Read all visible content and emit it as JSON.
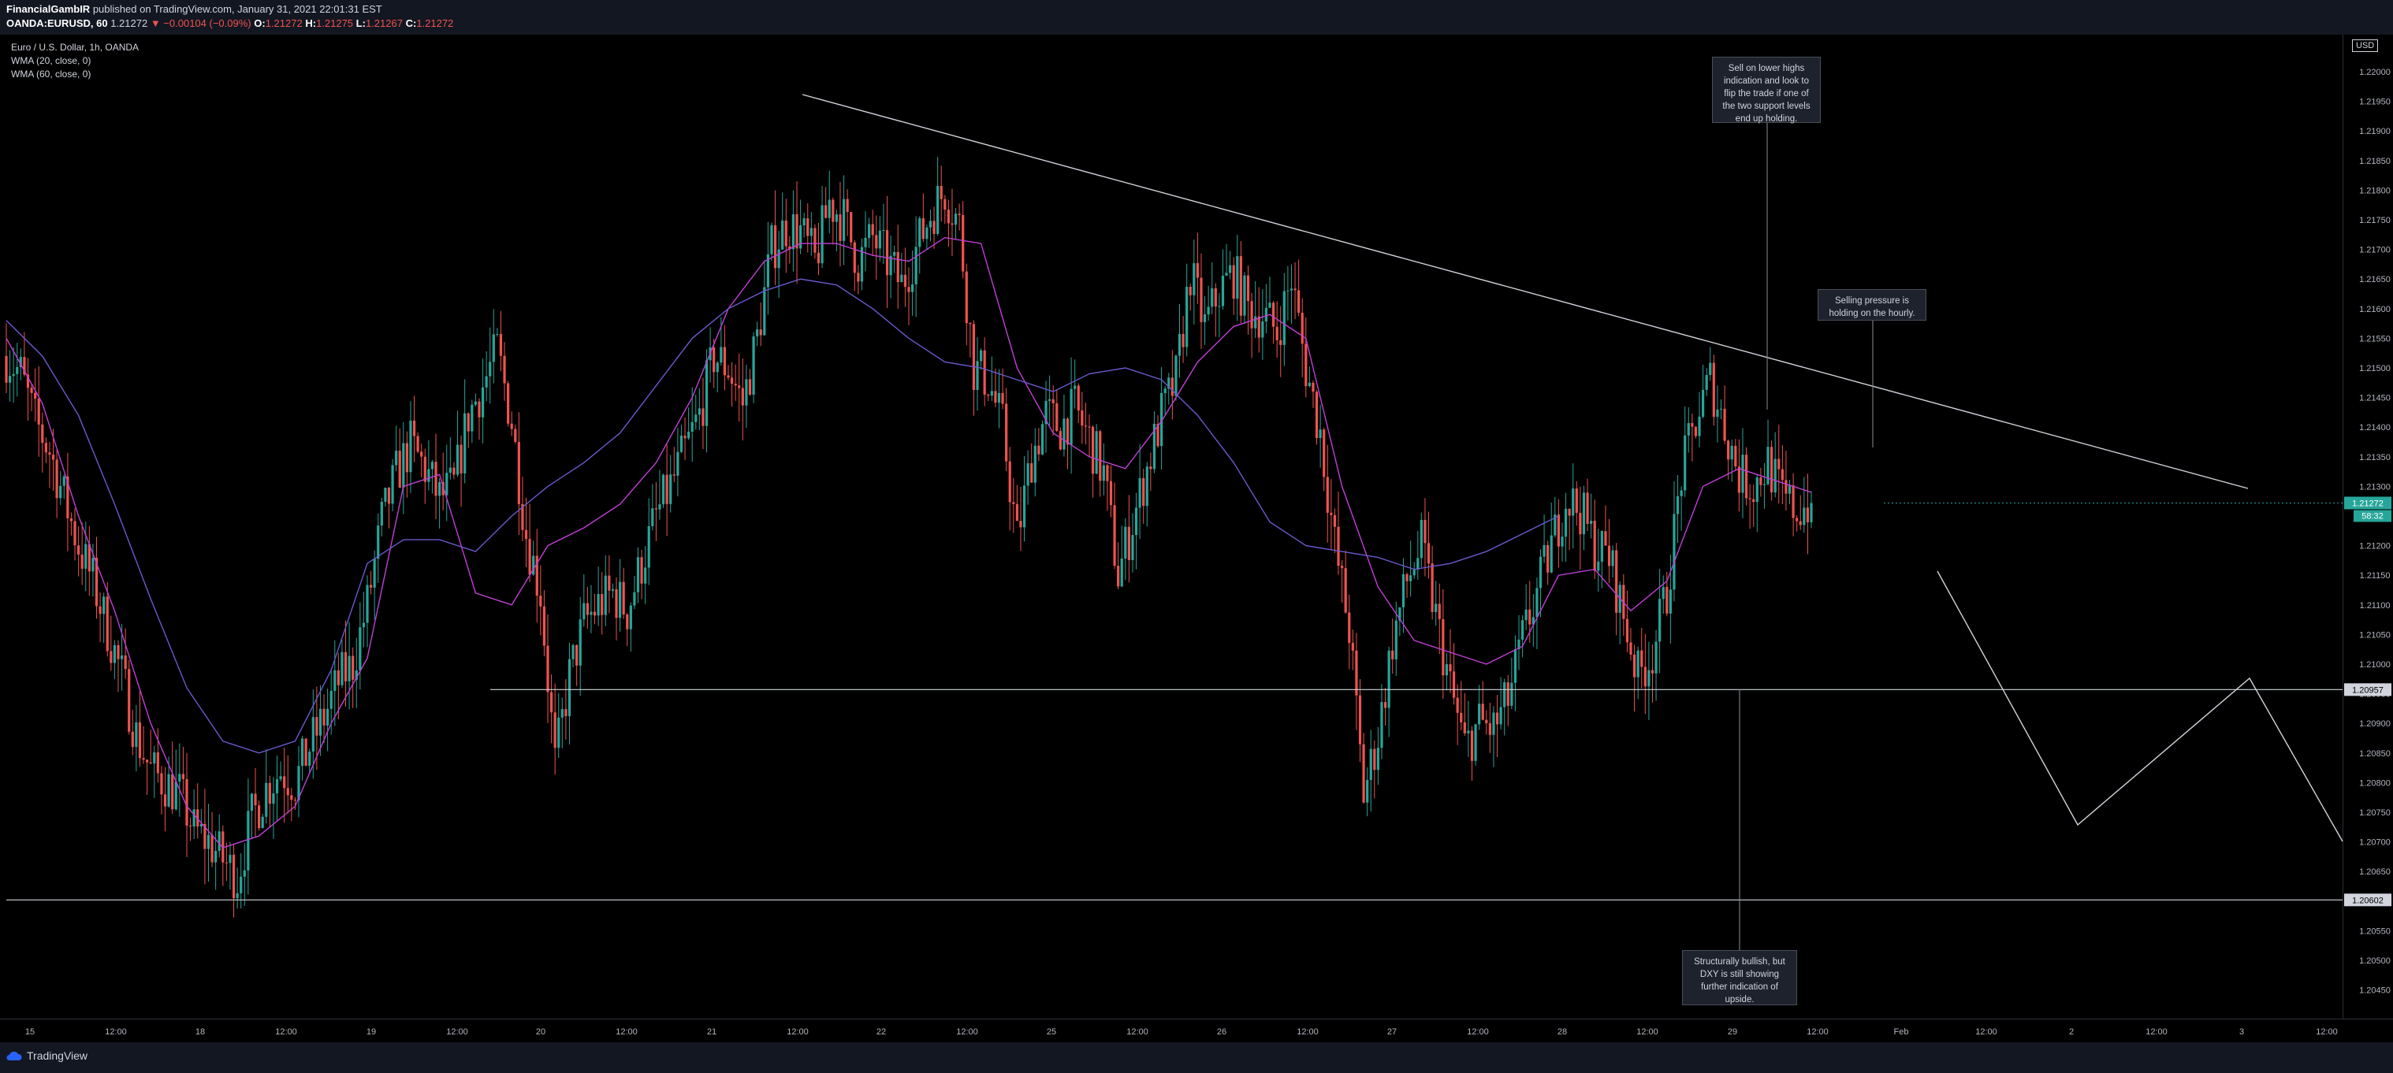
{
  "header": {
    "author": "FinancialGambIR",
    "published": "published on TradingView.com, January 31, 2021 22:01:31 EST",
    "symbol": "OANDA:EURUSD, 60",
    "last": "1.21272",
    "change": "▼ −0.00104 (−0.09%)",
    "o_label": "O:",
    "o_value": "1.21272",
    "h_label": "H:",
    "h_value": "1.21275",
    "l_label": "L:",
    "l_value": "1.21267",
    "c_label": "C:",
    "c_value": "1.21272"
  },
  "legend": {
    "title": "Euro / U.S. Dollar, 1h, OANDA",
    "wma20": "WMA (20, close, 0)",
    "wma60": "WMA (60, close, 0)"
  },
  "axis": {
    "currency": "USD",
    "countdown": "58:32",
    "price_ticks": [
      "1.22000",
      "1.21950",
      "1.21900",
      "1.21850",
      "1.21800",
      "1.21750",
      "1.21700",
      "1.21650",
      "1.21600",
      "1.21550",
      "1.21500",
      "1.21450",
      "1.21400",
      "1.21350",
      "1.21300",
      "1.21250",
      "1.21200",
      "1.21150",
      "1.21100",
      "1.21050",
      "1.21000",
      "1.20950",
      "1.20900",
      "1.20850",
      "1.20800",
      "1.20750",
      "1.20700",
      "1.20650",
      "1.20600",
      "1.20550",
      "1.20500",
      "1.20450"
    ],
    "time_ticks": [
      "15",
      "12:00",
      "18",
      "12:00",
      "19",
      "12:00",
      "20",
      "12:00",
      "21",
      "12:00",
      "22",
      "12:00",
      "25",
      "12:00",
      "26",
      "12:00",
      "27",
      "12:00",
      "28",
      "12:00",
      "29",
      "12:00",
      "Feb",
      "12:00",
      "2",
      "12:00",
      "3",
      "12:00"
    ]
  },
  "annotations": {
    "note_top": [
      "Sell on lower highs",
      "indication and look to",
      "flip the trade if one of",
      "the two support levels",
      "end up holding."
    ],
    "note_mid": [
      "Selling pressure is",
      "holding on the hourly."
    ],
    "note_bottom": [
      "Structurally bullish, but",
      "DXY is still showing",
      "further indication of",
      "upside."
    ]
  },
  "footer": {
    "brand": "TradingView"
  },
  "colors": {
    "up": "#26a69a",
    "down": "#ef5350",
    "wma20": "#c13fd6",
    "wma60": "#6a5acd",
    "lines": "#d1d4dc",
    "last_badge": "#26a69a"
  },
  "chart_data": {
    "type": "candlestick",
    "symbol": "EURUSD",
    "timeframe": "1h",
    "ylim": [
      1.2042,
      1.2208
    ],
    "last_price": 1.21272,
    "horizontal_levels": [
      1.20957,
      1.20602
    ],
    "trendline": {
      "from": [
        "Jan 21 ~22:00",
        1.2196
      ],
      "to": [
        "Feb 3 12:00",
        1.213
      ]
    },
    "projection_path": [
      [
        "Feb 1 ~12:00",
        1.2117
      ],
      [
        "Feb 2",
        1.2074
      ],
      [
        "Feb 3",
        1.2098
      ],
      [
        "Feb 3 ~20:00",
        1.207
      ]
    ],
    "close_path": [
      [
        0,
        1.2152
      ],
      [
        4,
        1.2149
      ],
      [
        8,
        1.2141
      ],
      [
        12,
        1.2136
      ],
      [
        16,
        1.2128
      ],
      [
        20,
        1.212
      ],
      [
        24,
        1.2114
      ],
      [
        28,
        1.2106
      ],
      [
        32,
        1.2098
      ],
      [
        36,
        1.2088
      ],
      [
        40,
        1.2082
      ],
      [
        44,
        1.208
      ],
      [
        48,
        1.2078
      ],
      [
        52,
        1.2072
      ],
      [
        56,
        1.207
      ],
      [
        60,
        1.2067
      ],
      [
        64,
        1.2064
      ],
      [
        68,
        1.2074
      ],
      [
        72,
        1.2079
      ],
      [
        76,
        1.2082
      ],
      [
        80,
        1.208
      ],
      [
        84,
        1.2086
      ],
      [
        88,
        1.2091
      ],
      [
        92,
        1.2097
      ],
      [
        96,
        1.21
      ],
      [
        100,
        1.211
      ],
      [
        104,
        1.2124
      ],
      [
        108,
        1.2132
      ],
      [
        112,
        1.2137
      ],
      [
        116,
        1.2133
      ],
      [
        120,
        1.2128
      ],
      [
        124,
        1.213
      ],
      [
        128,
        1.2142
      ],
      [
        132,
        1.2147
      ],
      [
        136,
        1.2153
      ],
      [
        140,
        1.2141
      ],
      [
        144,
        1.2122
      ],
      [
        148,
        1.2112
      ],
      [
        152,
        1.2083
      ],
      [
        156,
        1.2098
      ],
      [
        160,
        1.2107
      ],
      [
        164,
        1.211
      ],
      [
        168,
        1.2112
      ],
      [
        172,
        1.2109
      ],
      [
        176,
        1.2117
      ],
      [
        180,
        1.2125
      ],
      [
        184,
        1.213
      ],
      [
        188,
        1.2136
      ],
      [
        192,
        1.2142
      ],
      [
        196,
        1.2152
      ],
      [
        200,
        1.215
      ],
      [
        204,
        1.2144
      ],
      [
        208,
        1.2155
      ],
      [
        212,
        1.217
      ],
      [
        216,
        1.2174
      ],
      [
        220,
        1.2173
      ],
      [
        224,
        1.2168
      ],
      [
        228,
        1.2178
      ],
      [
        232,
        1.2175
      ],
      [
        236,
        1.2168
      ],
      [
        240,
        1.2172
      ],
      [
        244,
        1.2168
      ],
      [
        248,
        1.2164
      ],
      [
        252,
        1.217
      ],
      [
        256,
        1.2176
      ],
      [
        260,
        1.218
      ],
      [
        264,
        1.2174
      ],
      [
        268,
        1.215
      ],
      [
        272,
        1.2148
      ],
      [
        276,
        1.214
      ],
      [
        280,
        1.2121
      ],
      [
        284,
        1.2135
      ],
      [
        288,
        1.2142
      ],
      [
        292,
        1.214
      ],
      [
        296,
        1.2143
      ],
      [
        300,
        1.2138
      ],
      [
        304,
        1.2132
      ],
      [
        308,
        1.2115
      ],
      [
        312,
        1.2124
      ],
      [
        316,
        1.2133
      ],
      [
        320,
        1.2142
      ],
      [
        324,
        1.2148
      ],
      [
        328,
        1.2166
      ],
      [
        332,
        1.2157
      ],
      [
        336,
        1.2163
      ],
      [
        340,
        1.2166
      ],
      [
        344,
        1.216
      ],
      [
        348,
        1.2159
      ],
      [
        352,
        1.2156
      ],
      [
        356,
        1.2165
      ],
      [
        360,
        1.215
      ],
      [
        364,
        1.2139
      ],
      [
        368,
        1.212
      ],
      [
        372,
        1.2106
      ],
      [
        376,
        1.2078
      ],
      [
        380,
        1.2088
      ],
      [
        384,
        1.2104
      ],
      [
        388,
        1.2114
      ],
      [
        392,
        1.212
      ],
      [
        396,
        1.2108
      ],
      [
        400,
        1.2096
      ],
      [
        404,
        1.2086
      ],
      [
        408,
        1.209
      ],
      [
        412,
        1.2089
      ],
      [
        416,
        1.2094
      ],
      [
        420,
        1.2104
      ],
      [
        424,
        1.2112
      ],
      [
        428,
        1.212
      ],
      [
        432,
        1.2128
      ],
      [
        436,
        1.2126
      ],
      [
        440,
        1.212
      ],
      [
        444,
        1.2118
      ],
      [
        448,
        1.2108
      ],
      [
        452,
        1.2098
      ],
      [
        456,
        1.2102
      ],
      [
        460,
        1.2112
      ],
      [
        464,
        1.2132
      ],
      [
        468,
        1.2141
      ],
      [
        472,
        1.2148
      ],
      [
        476,
        1.214
      ],
      [
        480,
        1.2132
      ],
      [
        484,
        1.213
      ],
      [
        488,
        1.2134
      ],
      [
        492,
        1.2128
      ],
      [
        496,
        1.2126
      ],
      [
        500,
        1.21272
      ]
    ],
    "series": [
      {
        "name": "WMA (20, close, 0)",
        "values": [
          [
            0,
            1.2155
          ],
          [
            10,
            1.2144
          ],
          [
            20,
            1.2125
          ],
          [
            30,
            1.2109
          ],
          [
            40,
            1.209
          ],
          [
            50,
            1.2076
          ],
          [
            60,
            1.2069
          ],
          [
            70,
            1.2071
          ],
          [
            80,
            1.2076
          ],
          [
            90,
            1.209
          ],
          [
            100,
            1.2101
          ],
          [
            110,
            1.213
          ],
          [
            120,
            1.2132
          ],
          [
            130,
            1.2112
          ],
          [
            140,
            1.211
          ],
          [
            150,
            1.212
          ],
          [
            160,
            1.2123
          ],
          [
            170,
            1.2127
          ],
          [
            180,
            1.2134
          ],
          [
            190,
            1.2145
          ],
          [
            200,
            1.216
          ],
          [
            210,
            1.2168
          ],
          [
            220,
            1.2171
          ],
          [
            230,
            1.2171
          ],
          [
            240,
            1.2169
          ],
          [
            250,
            1.2168
          ],
          [
            260,
            1.2172
          ],
          [
            270,
            1.2171
          ],
          [
            280,
            1.215
          ],
          [
            290,
            1.2139
          ],
          [
            300,
            1.2135
          ],
          [
            310,
            1.2133
          ],
          [
            320,
            1.2141
          ],
          [
            330,
            1.2151
          ],
          [
            340,
            1.2157
          ],
          [
            350,
            1.2159
          ],
          [
            360,
            1.2155
          ],
          [
            370,
            1.213
          ],
          [
            380,
            1.2113
          ],
          [
            390,
            1.2104
          ],
          [
            400,
            1.2102
          ],
          [
            410,
            1.21
          ],
          [
            420,
            1.2103
          ],
          [
            430,
            1.2115
          ],
          [
            440,
            1.2116
          ],
          [
            450,
            1.2109
          ],
          [
            460,
            1.2114
          ],
          [
            470,
            1.213
          ],
          [
            480,
            1.2133
          ],
          [
            490,
            1.2131
          ],
          [
            500,
            1.2129
          ]
        ]
      },
      {
        "name": "WMA (60, close, 0)",
        "values": [
          [
            0,
            1.2158
          ],
          [
            10,
            1.2152
          ],
          [
            20,
            1.2142
          ],
          [
            30,
            1.2127
          ],
          [
            40,
            1.2111
          ],
          [
            50,
            1.2096
          ],
          [
            60,
            1.2087
          ],
          [
            70,
            1.2085
          ],
          [
            80,
            1.2087
          ],
          [
            90,
            1.2099
          ],
          [
            100,
            1.2117
          ],
          [
            110,
            1.2121
          ],
          [
            120,
            1.2121
          ],
          [
            130,
            1.2119
          ],
          [
            140,
            1.2125
          ],
          [
            150,
            1.213
          ],
          [
            160,
            1.2134
          ],
          [
            170,
            1.2139
          ],
          [
            180,
            1.2147
          ],
          [
            190,
            1.2155
          ],
          [
            200,
            1.216
          ],
          [
            210,
            1.2163
          ],
          [
            220,
            1.2165
          ],
          [
            230,
            1.2164
          ],
          [
            240,
            1.216
          ],
          [
            250,
            1.2155
          ],
          [
            260,
            1.2151
          ],
          [
            270,
            1.215
          ],
          [
            280,
            1.2148
          ],
          [
            290,
            1.2146
          ],
          [
            300,
            1.2149
          ],
          [
            310,
            1.215
          ],
          [
            320,
            1.2148
          ],
          [
            330,
            1.2142
          ],
          [
            340,
            1.2134
          ],
          [
            350,
            1.2124
          ],
          [
            360,
            1.212
          ],
          [
            370,
            1.2119
          ],
          [
            380,
            1.2118
          ],
          [
            390,
            1.2116
          ],
          [
            400,
            1.2117
          ],
          [
            410,
            1.2119
          ],
          [
            420,
            1.2122
          ],
          [
            430,
            1.2125
          ]
        ]
      }
    ]
  }
}
